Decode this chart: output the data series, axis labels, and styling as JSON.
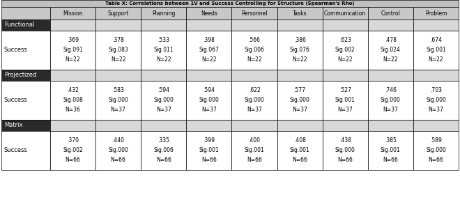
{
  "title": "Table X: Correlations between 1V and Success Controlling for Structure (Spearman's Rho)",
  "col_headers": [
    "Mission",
    "Support",
    "Planning",
    "Needs",
    "Personnel",
    "Tasks",
    "Communication",
    "Control",
    "Problem"
  ],
  "sections": [
    {
      "section_label": "Functional",
      "row_label": "Success",
      "values": [
        [
          ".369",
          "Sig.091",
          "N=22"
        ],
        [
          ".378",
          "Sig.083",
          "N=22"
        ],
        [
          ".533",
          "Sig.011",
          "N=22"
        ],
        [
          ".398",
          "Sig.067",
          "N=22"
        ],
        [
          ".566",
          "Sig.006",
          "N=22"
        ],
        [
          ".386",
          "Sig.076",
          "N=22"
        ],
        [
          ".623",
          "Sig.002",
          "N=22"
        ],
        [
          ".478",
          "Sig.024",
          "N=22"
        ],
        [
          ".674",
          "Sig.001",
          "N=22"
        ]
      ]
    },
    {
      "section_label": "Projectized",
      "row_label": "Success",
      "values": [
        [
          ".432",
          "Sig.008",
          "N=36"
        ],
        [
          ".583",
          "Sig.000",
          "N=37"
        ],
        [
          ".594",
          "Sig.000",
          "N=37"
        ],
        [
          ".594",
          "Sig.000",
          "N=37"
        ],
        [
          ".622",
          "Sig.000",
          "N=37"
        ],
        [
          ".577",
          "Sig.000",
          "N=37"
        ],
        [
          ".527",
          "Sig.001",
          "N=37"
        ],
        [
          ".746",
          "Sig.000",
          "N=37"
        ],
        [
          ".703",
          "Sig.000",
          "N=37"
        ]
      ]
    },
    {
      "section_label": "Matrix",
      "row_label": "Success",
      "values": [
        [
          ".370",
          "Sig.002",
          "N=66"
        ],
        [
          ".440",
          "Sig.000",
          "N=66"
        ],
        [
          ".335",
          "Sig.006",
          "N=66"
        ],
        [
          ".399",
          "Sig.001",
          "N=66"
        ],
        [
          ".400",
          "Sig.001",
          "N=66"
        ],
        [
          ".408",
          "Sig.001",
          "N=66"
        ],
        [
          ".438",
          "Sig.000",
          "N=66"
        ],
        [
          ".385",
          "Sig.001",
          "N=66"
        ],
        [
          ".589",
          "Sig.000",
          "N=66"
        ]
      ]
    }
  ],
  "bg_title_row": "#c0c0c0",
  "bg_header": "#c8c8c8",
  "bg_section": "#2a2a2a",
  "bg_section_data_cols": "#d8d8d8",
  "bg_white": "#ffffff",
  "border_color": "#000000",
  "text_color_dark": "#000000",
  "text_color_light": "#ffffff",
  "title_fontsize": 5.0,
  "header_fontsize": 5.5,
  "cell_fontsize": 5.5,
  "label_fontsize": 6.0
}
